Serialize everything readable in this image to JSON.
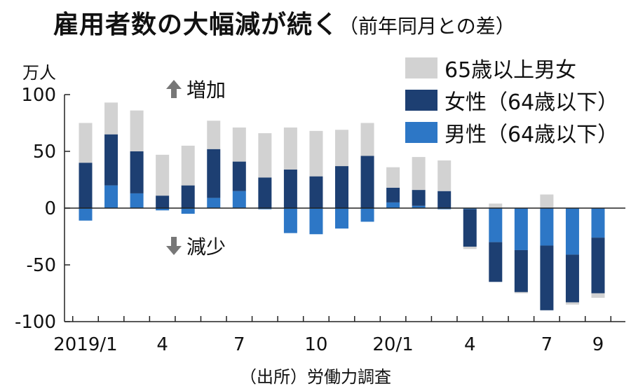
{
  "title": "雇用者数の大幅減が続く",
  "subtitle": "（前年同月との差）",
  "unit": "万人",
  "source": "（出所）労働力調査",
  "annotations": {
    "increase": "増加",
    "decrease": "減少"
  },
  "colors": {
    "elderly": "#d2d2d2",
    "women": "#1d3f72",
    "men": "#2d77c6"
  },
  "legend": [
    {
      "key": "elderly",
      "label": "65歳以上男女"
    },
    {
      "key": "women",
      "label": "女性（64歳以下）"
    },
    {
      "key": "men",
      "label": "男性（64歳以下）"
    }
  ],
  "chart_data": {
    "type": "bar",
    "stacked": true,
    "categories": [
      "2019/1",
      "2019/2",
      "2019/3",
      "2019/4",
      "2019/5",
      "2019/6",
      "2019/7",
      "2019/8",
      "2019/9",
      "2019/10",
      "2019/11",
      "2019/12",
      "2020/1",
      "2020/2",
      "2020/3",
      "2020/4",
      "2020/5",
      "2020/6",
      "2020/7",
      "2020/8",
      "2020/9"
    ],
    "x_tick_labels": [
      "2019/1",
      "",
      "",
      "4",
      "",
      "",
      "7",
      "",
      "",
      "10",
      "",
      "",
      "20/1",
      "",
      "",
      "4",
      "",
      "",
      "7",
      "",
      "9"
    ],
    "y_ticks": [
      100,
      50,
      0,
      -50,
      -100
    ],
    "y_tick_labels": [
      "100",
      "50",
      "0",
      "-50",
      "-100"
    ],
    "ylim": [
      -100,
      100
    ],
    "series": [
      {
        "name": "男性（64歳以下）",
        "key": "men",
        "values": [
          -11,
          20,
          13,
          -2,
          -5,
          9,
          15,
          -1,
          -22,
          -23,
          -18,
          -12,
          5,
          2,
          -1,
          -1,
          -30,
          -37,
          -33,
          -41,
          -26
        ]
      },
      {
        "name": "女性（64歳以下）",
        "key": "women",
        "values": [
          40,
          45,
          37,
          11,
          20,
          43,
          26,
          27,
          34,
          28,
          37,
          46,
          13,
          14,
          15,
          -33,
          -35,
          -37,
          -57,
          -42,
          -49
        ]
      },
      {
        "name": "65歳以上男女",
        "key": "elderly",
        "values": [
          35,
          28,
          36,
          36,
          35,
          25,
          30,
          39,
          37,
          40,
          32,
          29,
          18,
          29,
          27,
          -2,
          4,
          -1,
          12,
          -2,
          -4
        ]
      }
    ]
  }
}
